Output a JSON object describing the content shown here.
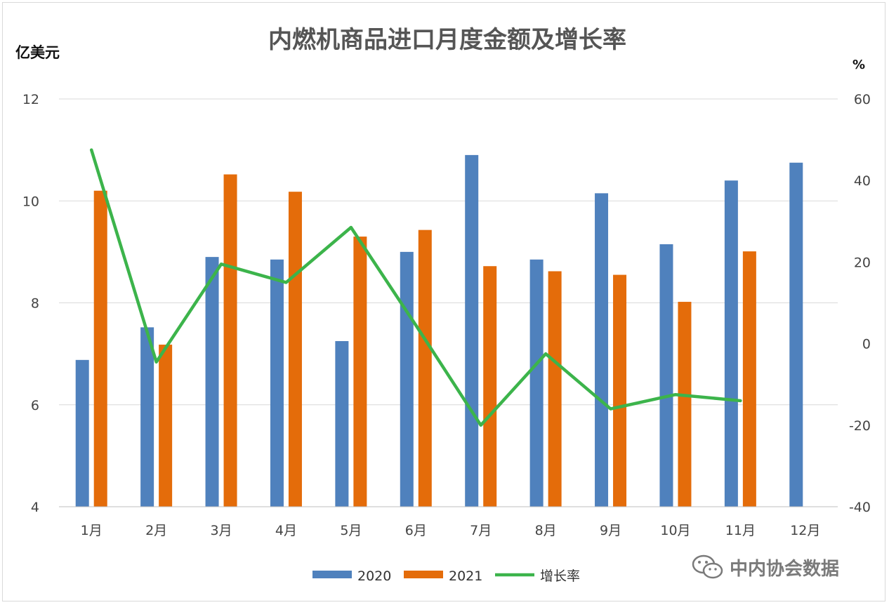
{
  "chart_data": {
    "type": "bar",
    "title": "内燃机商品进口月度金额及增长率",
    "ylabel_left": "亿美元",
    "ylabel_right": "%",
    "ylim_left": [
      4,
      12
    ],
    "ylim_right": [
      -40,
      60
    ],
    "yticks_left": [
      "4",
      "6",
      "8",
      "10",
      "12"
    ],
    "yticks_right": [
      "-40",
      "-20",
      "0",
      "20",
      "40",
      "60"
    ],
    "categories": [
      "1月",
      "2月",
      "3月",
      "4月",
      "5月",
      "6月",
      "7月",
      "8月",
      "9月",
      "10月",
      "11月",
      "12月"
    ],
    "series": [
      {
        "name": "2020",
        "type": "bar",
        "axis": "left",
        "color": "#4f81bd",
        "values": [
          6.88,
          7.52,
          8.9,
          8.85,
          7.25,
          9.0,
          10.9,
          8.85,
          10.15,
          9.15,
          10.4,
          10.75
        ]
      },
      {
        "name": "2021",
        "type": "bar",
        "axis": "left",
        "color": "#e46c0a",
        "values": [
          10.2,
          7.18,
          10.52,
          10.18,
          9.3,
          9.43,
          8.72,
          8.62,
          8.55,
          8.02,
          9.01,
          null
        ]
      },
      {
        "name": "增长率",
        "type": "line",
        "axis": "right",
        "color": "#3cb44b",
        "values": [
          47.5,
          -4.5,
          19.5,
          15.0,
          28.5,
          4.5,
          -20.0,
          -2.5,
          -16.0,
          -12.5,
          -14.0,
          null
        ]
      }
    ],
    "grid": true,
    "legend_position": "bottom"
  },
  "watermark": {
    "text": "中内协会数据",
    "icon": "wechat-icon"
  }
}
